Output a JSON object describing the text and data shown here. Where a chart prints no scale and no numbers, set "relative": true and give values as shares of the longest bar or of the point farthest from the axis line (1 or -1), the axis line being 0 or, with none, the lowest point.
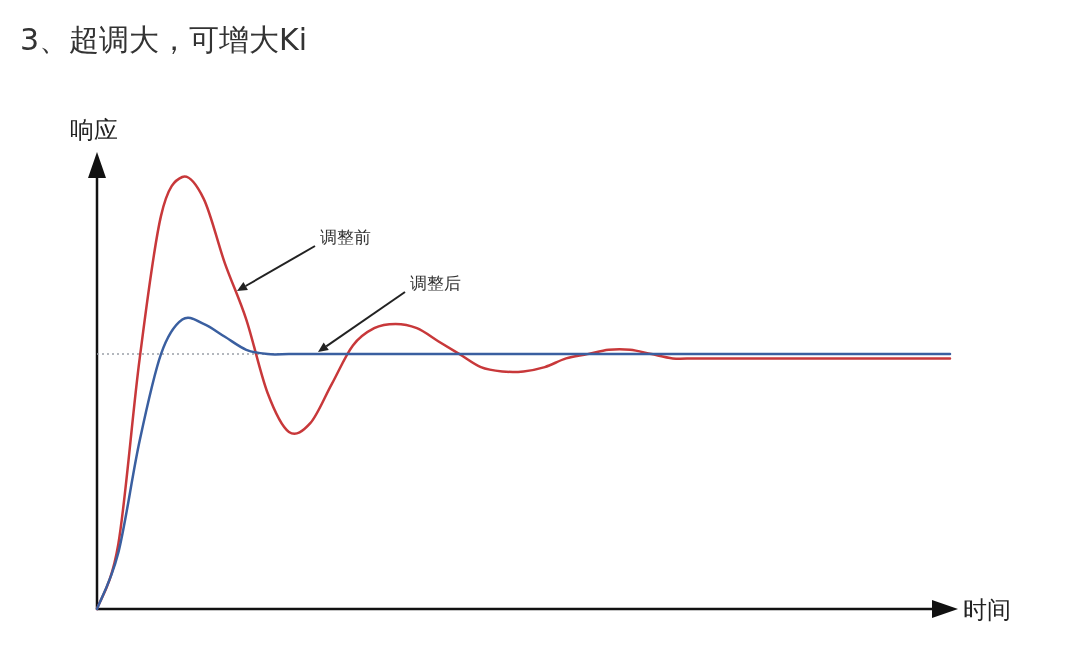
{
  "chart_data": {
    "type": "line",
    "title": "3、超调大，可增大Ki",
    "xlabel": "时间",
    "ylabel": "响应",
    "relative": true,
    "marker": "none",
    "line_style": "solid",
    "categories": [
      null,
      null,
      null,
      null,
      null,
      null,
      null,
      null,
      null,
      null,
      null,
      null,
      null,
      null,
      null,
      null,
      null,
      null,
      null,
      null,
      null,
      null,
      null,
      null,
      null,
      null,
      null,
      null,
      null,
      null,
      null,
      null,
      null,
      null,
      null,
      null,
      null,
      null,
      null,
      null,
      null
    ],
    "series": [
      {
        "color": "#c8383a",
        "values": [
          0,
          0.15,
          0.58,
          0.91,
          1.0,
          0.95,
          0.8,
          0.67,
          0.5,
          0.41,
          0.43,
          0.52,
          0.61,
          0.65,
          0.66,
          0.65,
          0.62,
          0.59,
          0.56,
          0.55,
          0.55,
          0.56,
          0.58,
          0.59,
          0.6,
          0.6,
          0.59,
          0.58,
          0.58,
          0.58,
          0.58,
          0.58,
          0.58,
          0.58,
          0.58,
          0.58,
          0.58,
          0.58,
          0.58,
          0.58,
          0.58
        ]
      },
      {
        "color": "#3a5fa0",
        "values": [
          0,
          0.13,
          0.39,
          0.59,
          0.67,
          0.66,
          0.63,
          0.6,
          0.59,
          0.59,
          0.59,
          0.59,
          0.59,
          0.59,
          0.59,
          0.59,
          0.59,
          0.59,
          0.59,
          0.59,
          0.59,
          0.59,
          0.59,
          0.59,
          0.59,
          0.59,
          0.59,
          0.59,
          0.59,
          0.59,
          0.59,
          0.59,
          0.59,
          0.59,
          0.59,
          0.59,
          0.59,
          0.59,
          0.59,
          0.59,
          0.59
        ]
      }
    ],
    "ref_lines": [
      {
        "axis": "y",
        "value": 0.59,
        "color": "#9aa0a8",
        "line_style": "dotted"
      }
    ],
    "annotations": [
      "调整前",
      "调整后"
    ]
  }
}
